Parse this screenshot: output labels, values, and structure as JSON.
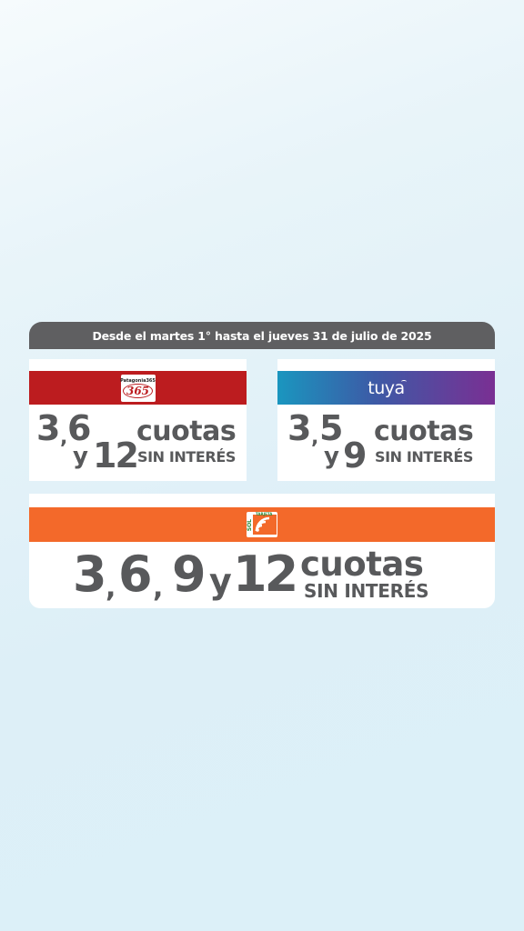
{
  "banner": {
    "text": "Desde el martes 1° hasta el jueves 31 de julio de 2025"
  },
  "patagonia": {
    "logo_name": "Patagonia365",
    "logo_number": "365",
    "n1": "3",
    "sep1": ",",
    "n2": "6",
    "y": "y",
    "n3": "12",
    "cuotas": "cuotas",
    "sin": "SIN INTERÉS",
    "color": "#bc1c1f"
  },
  "tuya": {
    "logo_name": "tuya",
    "n1": "3",
    "sep1": ",",
    "n2": "5",
    "y": "y",
    "n3": "9",
    "cuotas": "cuotas",
    "sin": "SIN INTERÉS"
  },
  "sol": {
    "logo_name": "SOL",
    "logo_sub": "TARJETA",
    "n1": "3",
    "sep1": ",",
    "n2": "6",
    "sep2": ",",
    "n3": "9",
    "y": "y",
    "n4": "12",
    "cuotas": "cuotas",
    "sin": "SIN INTERÉS",
    "color": "#f3692a"
  },
  "text_color": "#58595b"
}
